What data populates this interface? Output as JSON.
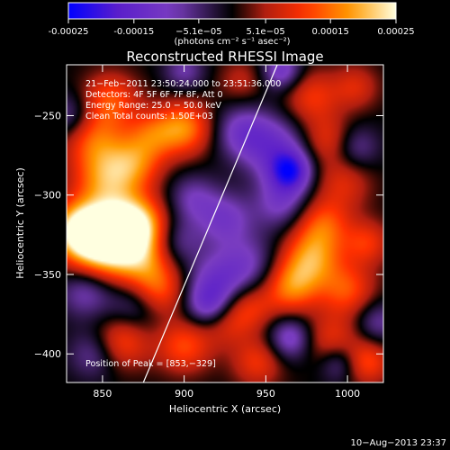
{
  "chart_data": {
    "type": "heatmap",
    "title": "Reconstructed RHESSI Image",
    "xlabel": "Heliocentric X (arcsec)",
    "ylabel": "Heliocentric Y (arcsec)",
    "xlim": [
      828,
      1022
    ],
    "ylim": [
      -418,
      -218
    ],
    "xticks": [
      850,
      900,
      950,
      1000
    ],
    "yticks": [
      -400,
      -350,
      -300,
      -250
    ],
    "colorbar": {
      "range": [
        -0.00025,
        0.00025
      ],
      "tick_values": [
        -0.00025,
        -0.00015,
        -5.1e-05,
        5.1e-05,
        0.00015,
        0.00025
      ],
      "tick_labels": [
        "-0.00025",
        "-0.00015",
        "−5.1e−05",
        "5.1e−05",
        "0.00015",
        "0.00025"
      ],
      "label": "(photons cm⁻² s⁻¹ asec⁻²)",
      "colors": [
        "#0000ff",
        "#5a1ecb",
        "#7a3dc0",
        "#000000",
        "#b01e10",
        "#ff3000",
        "#ff9a00",
        "#ffffe0"
      ]
    },
    "annotations": [
      "21−Feb−2011 23:50:24.000 to 23:51:36.000",
      "Detectors: 4F 5F 6F 7F 8F, Att 0",
      "Energy Range: 25.0 − 50.0 keV",
      "Clean    Total counts: 1.50E+03"
    ],
    "peak_label": "Position of Peak = [853,−329]",
    "limb_line": {
      "x": [
        875,
        957
      ],
      "y": [
        -418,
        -218
      ]
    },
    "sources": [
      {
        "x": 851,
        "y": -330,
        "v": 0.00025,
        "r": 16
      },
      {
        "x": 836,
        "y": -322,
        "v": 0.0002,
        "r": 12
      },
      {
        "x": 863,
        "y": -322,
        "v": 0.00015,
        "r": 14
      },
      {
        "x": 874,
        "y": -318,
        "v": 0.00012,
        "r": 12
      },
      {
        "x": 852,
        "y": -290,
        "v": 0.00015,
        "r": 14
      },
      {
        "x": 870,
        "y": -280,
        "v": 0.00012,
        "r": 12
      },
      {
        "x": 845,
        "y": -265,
        "v": 0.00012,
        "r": 13
      },
      {
        "x": 880,
        "y": -262,
        "v": 0.0001,
        "r": 11
      },
      {
        "x": 900,
        "y": -258,
        "v": 0.00016,
        "r": 12
      },
      {
        "x": 855,
        "y": -240,
        "v": 0.00012,
        "r": 12
      },
      {
        "x": 935,
        "y": -228,
        "v": 6e-05,
        "r": 10
      },
      {
        "x": 878,
        "y": -345,
        "v": 0.00012,
        "r": 13
      },
      {
        "x": 885,
        "y": -362,
        "v": 0.0001,
        "r": 11
      },
      {
        "x": 862,
        "y": -392,
        "v": 0.00012,
        "r": 12
      },
      {
        "x": 900,
        "y": -395,
        "v": 0.00012,
        "r": 12
      },
      {
        "x": 925,
        "y": -380,
        "v": 8e-05,
        "r": 11
      },
      {
        "x": 940,
        "y": -370,
        "v": 0.0001,
        "r": 11
      },
      {
        "x": 978,
        "y": -238,
        "v": 0.0001,
        "r": 12
      },
      {
        "x": 1005,
        "y": -232,
        "v": 8e-05,
        "r": 10
      },
      {
        "x": 988,
        "y": -265,
        "v": 9e-05,
        "r": 11
      },
      {
        "x": 998,
        "y": -292,
        "v": 8e-05,
        "r": 12
      },
      {
        "x": 985,
        "y": -318,
        "v": 0.00012,
        "r": 12
      },
      {
        "x": 978,
        "y": -340,
        "v": 0.00016,
        "r": 13
      },
      {
        "x": 965,
        "y": -358,
        "v": 0.00015,
        "r": 12
      },
      {
        "x": 1000,
        "y": -360,
        "v": 0.00012,
        "r": 12
      },
      {
        "x": 1012,
        "y": -330,
        "v": 0.0001,
        "r": 10
      },
      {
        "x": 990,
        "y": -392,
        "v": 0.0001,
        "r": 12
      },
      {
        "x": 1012,
        "y": -405,
        "v": 0.00012,
        "r": 10
      },
      {
        "x": 945,
        "y": -405,
        "v": 0.0001,
        "r": 11
      },
      {
        "x": 905,
        "y": -302,
        "v": -8e-05,
        "r": 11
      },
      {
        "x": 925,
        "y": -315,
        "v": -0.0001,
        "r": 12
      },
      {
        "x": 955,
        "y": -270,
        "v": -0.00012,
        "r": 14
      },
      {
        "x": 965,
        "y": -285,
        "v": -0.00018,
        "r": 9
      },
      {
        "x": 935,
        "y": -260,
        "v": -0.0001,
        "r": 12
      },
      {
        "x": 960,
        "y": -305,
        "v": -0.0001,
        "r": 12
      },
      {
        "x": 940,
        "y": -345,
        "v": -9e-05,
        "r": 14
      },
      {
        "x": 920,
        "y": -355,
        "v": -0.0001,
        "r": 13
      },
      {
        "x": 915,
        "y": -370,
        "v": -0.00012,
        "r": 10
      },
      {
        "x": 895,
        "y": -330,
        "v": -8e-05,
        "r": 11
      },
      {
        "x": 870,
        "y": -370,
        "v": -8e-05,
        "r": 12
      },
      {
        "x": 840,
        "y": -360,
        "v": -0.0001,
        "r": 12
      },
      {
        "x": 845,
        "y": -400,
        "v": -8e-05,
        "r": 11
      },
      {
        "x": 965,
        "y": -390,
        "v": -0.00012,
        "r": 10
      },
      {
        "x": 995,
        "y": -405,
        "v": -0.0001,
        "r": 9
      },
      {
        "x": 1005,
        "y": -270,
        "v": -8e-05,
        "r": 10
      },
      {
        "x": 830,
        "y": -250,
        "v": -8e-05,
        "r": 10
      },
      {
        "x": 900,
        "y": -222,
        "v": -8e-05,
        "r": 9
      },
      {
        "x": 960,
        "y": -222,
        "v": -0.00012,
        "r": 9
      },
      {
        "x": 1018,
        "y": -380,
        "v": -8e-05,
        "r": 10
      }
    ]
  },
  "footer": {
    "timestamp": "10−Aug−2013 23:37"
  }
}
